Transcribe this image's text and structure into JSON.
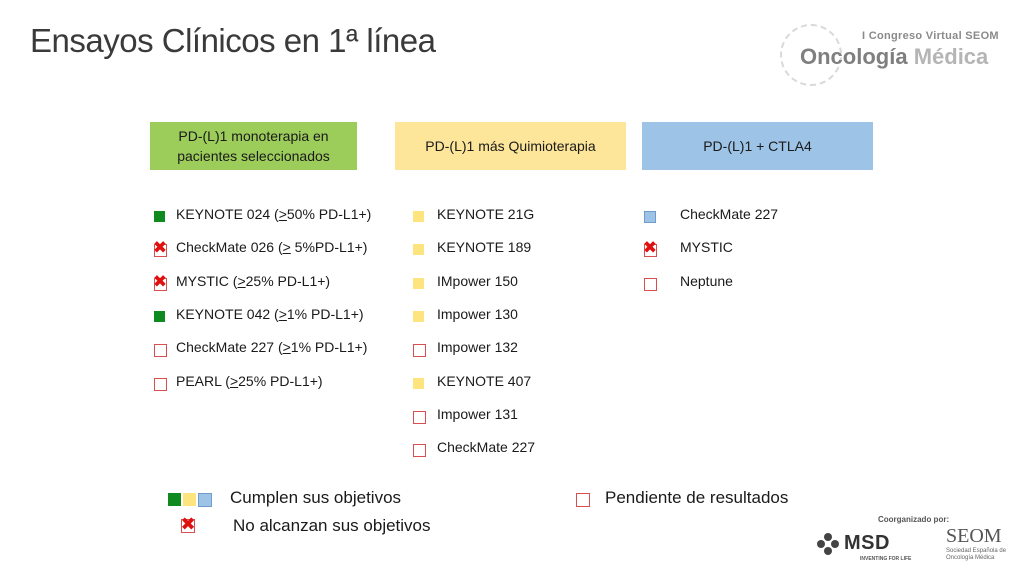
{
  "title": "Ensayos Clínicos en 1ª línea",
  "logo": {
    "congress": "I Congreso Virtual SEOM",
    "word1": "Oncología",
    "word2": "Médica"
  },
  "columns": [
    {
      "header": "PD-(L)1 monoterapia en pacientes seleccionados",
      "color": "#9ccc5a",
      "trials": [
        {
          "pre": "KEYNOTE 024 (",
          "u": ">",
          "post": "50% PD-L1+)",
          "status": "success"
        },
        {
          "pre": "CheckMate 026 (",
          "u": ">",
          "post": " 5%PD-L1+)",
          "status": "fail"
        },
        {
          "pre": "MYSTIC (",
          "u": ">",
          "post": "25% PD-L1+)",
          "status": "fail"
        },
        {
          "pre": "KEYNOTE 042 (",
          "u": ">",
          "post": "1% PD-L1+)",
          "status": "success"
        },
        {
          "pre": "CheckMate 227 (",
          "u": ">",
          "post": "1% PD-L1+)",
          "status": "pending"
        },
        {
          "pre": "PEARL (",
          "u": ">",
          "post": "25% PD-L1+)",
          "status": "pending"
        }
      ]
    },
    {
      "header": "PD-(L)1 más Quimioterapia",
      "color": "#fde69a",
      "trials": [
        {
          "pre": "KEYNOTE 21G",
          "u": "",
          "post": "",
          "status": "success"
        },
        {
          "pre": "KEYNOTE 189",
          "u": "",
          "post": "",
          "status": "success"
        },
        {
          "pre": "IMpower 150",
          "u": "",
          "post": "",
          "status": "success"
        },
        {
          "pre": "Impower 130",
          "u": "",
          "post": "",
          "status": "success"
        },
        {
          "pre": "Impower 132",
          "u": "",
          "post": "",
          "status": "pending"
        },
        {
          "pre": "KEYNOTE 407",
          "u": "",
          "post": "",
          "status": "success"
        },
        {
          "pre": "Impower 131",
          "u": "",
          "post": "",
          "status": "pending"
        },
        {
          "pre": "CheckMate 227",
          "u": "",
          "post": "",
          "status": "pending"
        }
      ]
    },
    {
      "header": "PD-(L)1 + CTLA4",
      "color": "#9dc3e6",
      "trials": [
        {
          "pre": "CheckMate 227",
          "u": "",
          "post": "",
          "status": "success"
        },
        {
          "pre": "MYSTIC",
          "u": "",
          "post": "",
          "status": "fail"
        },
        {
          "pre": "Neptune",
          "u": "",
          "post": "",
          "status": "pending"
        }
      ]
    }
  ],
  "legend": {
    "success": "Cumplen sus objetivos",
    "fail": "No alcanzan sus objetivos",
    "pending": "Pendiente de resultados"
  },
  "footer": {
    "organized": "Coorganizado por:",
    "msd_name": "MSD",
    "msd_tagline": "INVENTING FOR LIFE",
    "seom_name": "SEOM",
    "seom_sub": "Sociedad Española de Oncología Médica"
  },
  "colors": {
    "success_col1": "#0f8a1e",
    "success_col2": "#fde47f",
    "success_col3": "#9dc3e6",
    "fail": "#e01010",
    "pending_border": "#d84f4f"
  }
}
